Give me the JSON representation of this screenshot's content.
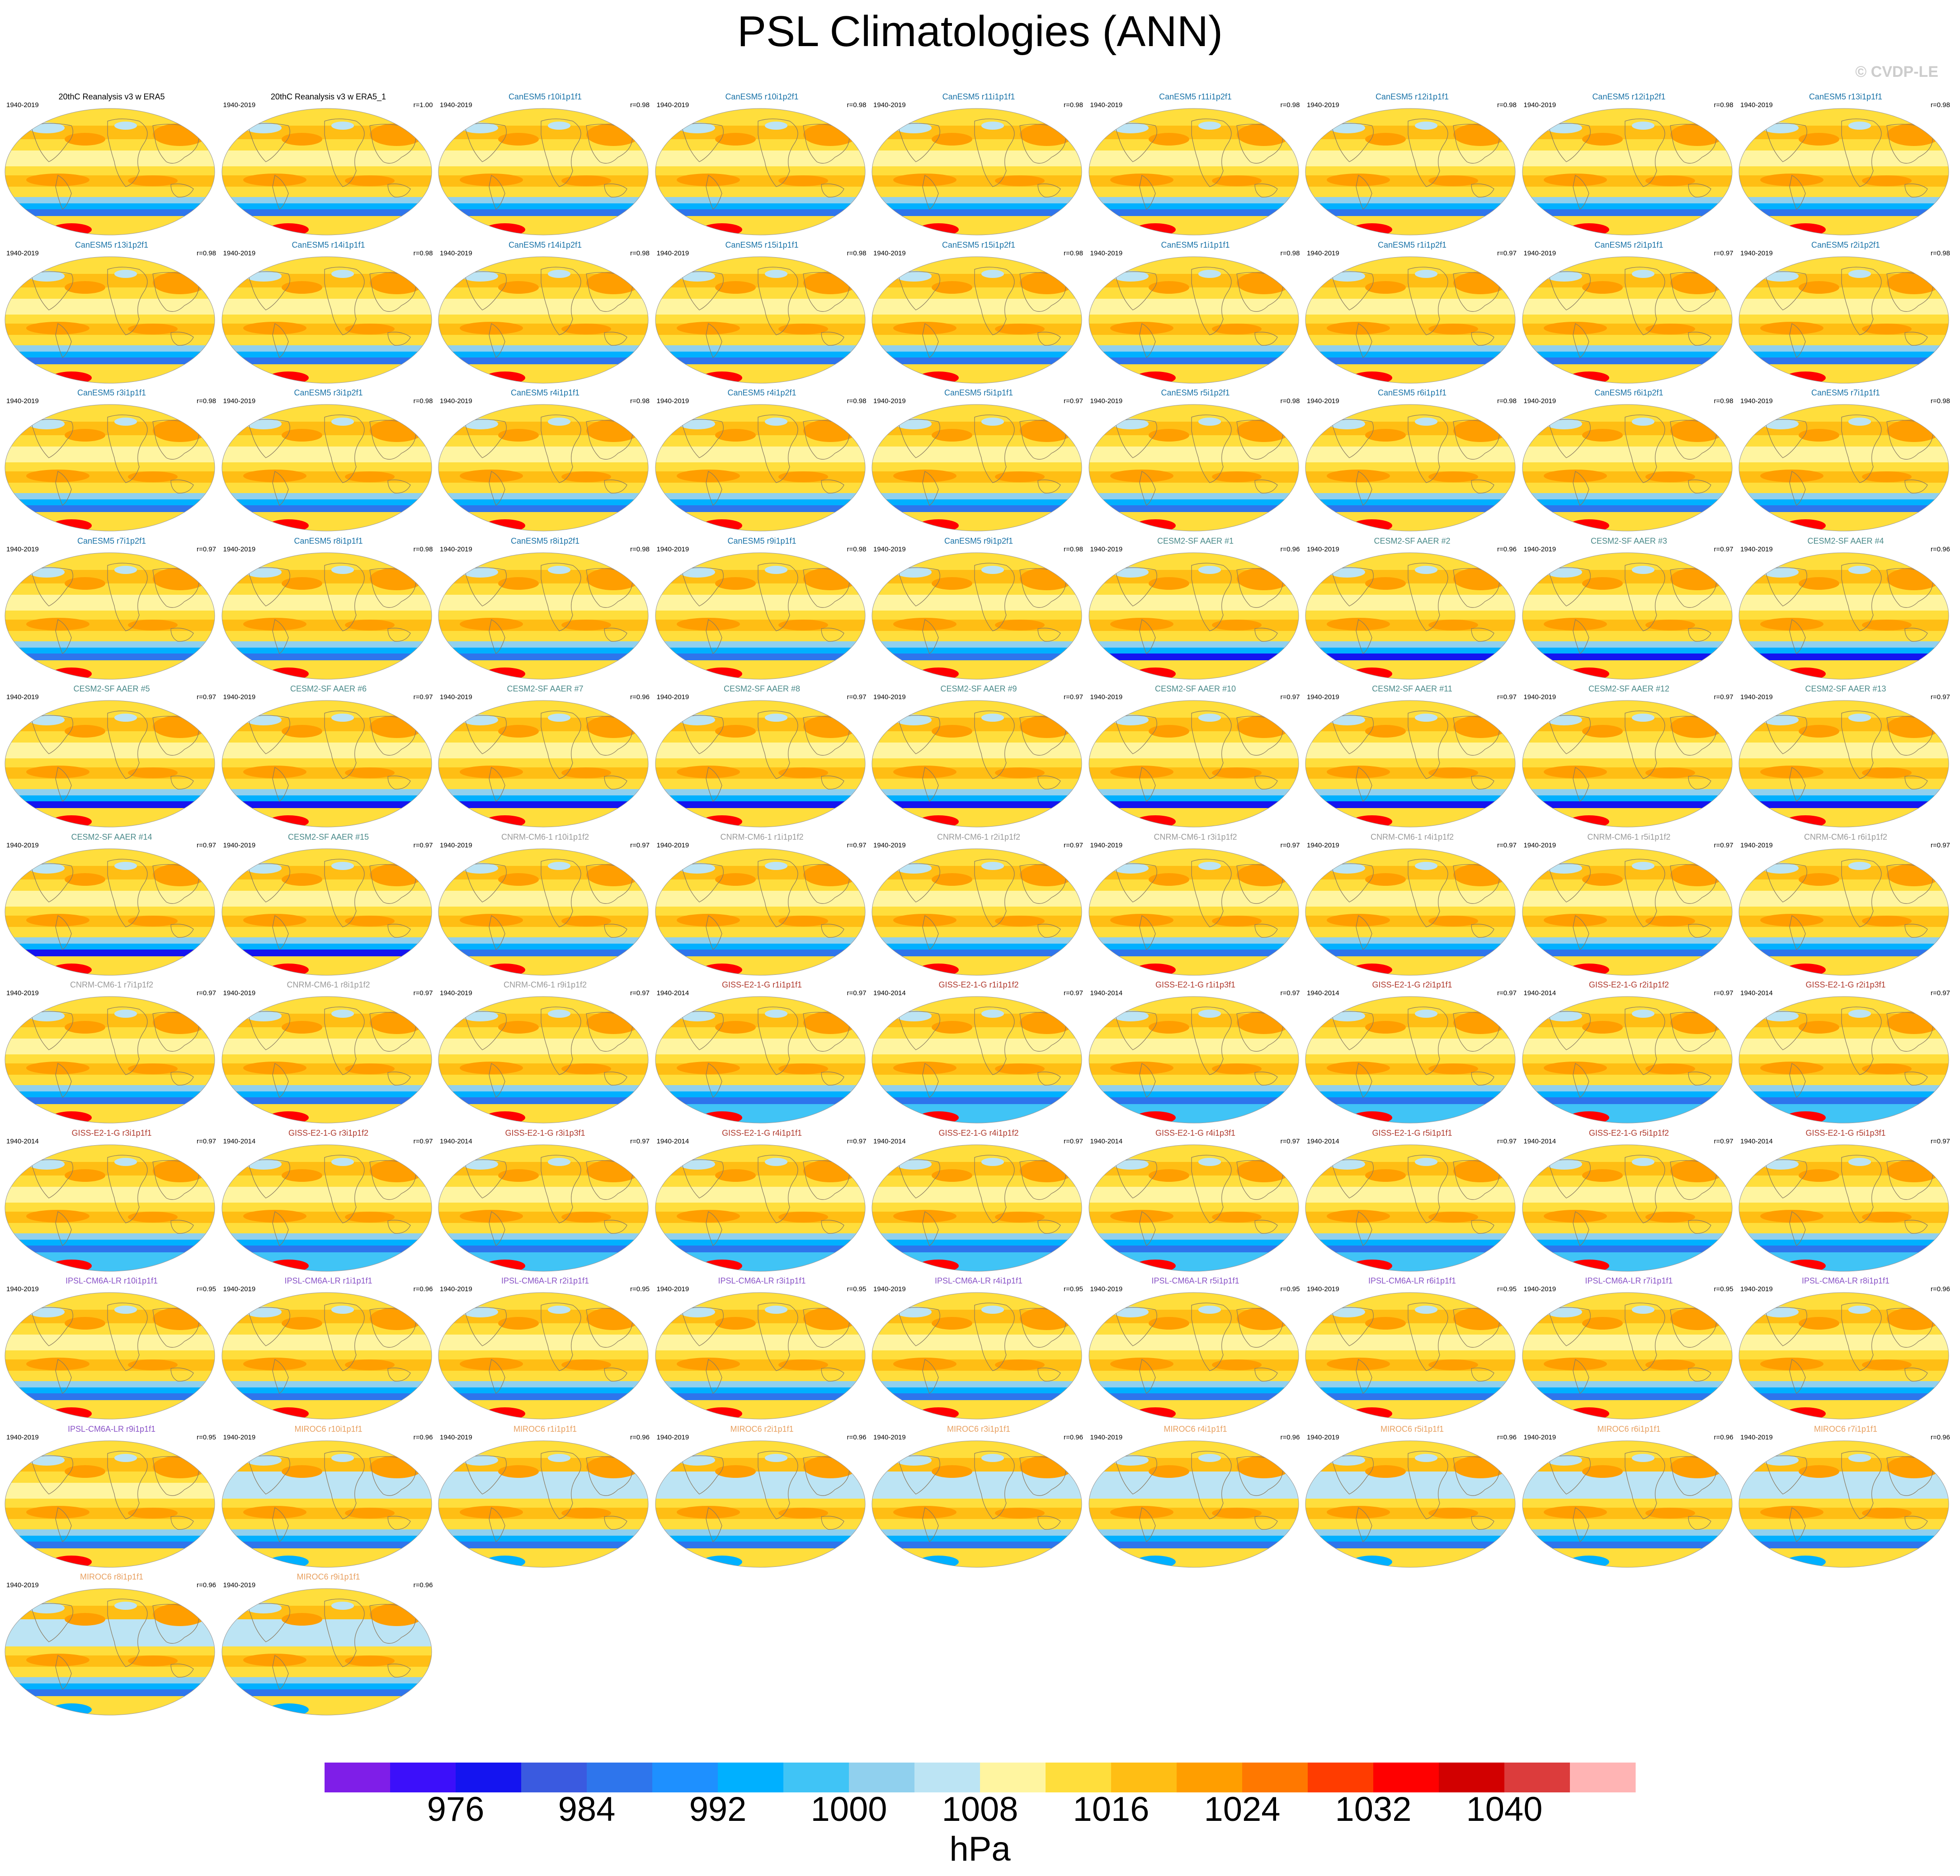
{
  "title": "PSL Climatologies (ANN)",
  "watermark": "© CVDP-LE",
  "chart_data": {
    "type": "heatmap",
    "title": "PSL Climatologies (ANN)",
    "units": "hPa",
    "colorbar": {
      "tick_labels": [
        "976",
        "984",
        "992",
        "1000",
        "1008",
        "1016",
        "1024",
        "1032",
        "1040"
      ],
      "colors": [
        "#7f1ee8",
        "#3c0ffa",
        "#1414f0",
        "#3a5ae0",
        "#2e75ec",
        "#1e90ff",
        "#00b0ff",
        "#40c4f6",
        "#90d0ee",
        "#bce4f4",
        "#fff5a0",
        "#ffde3c",
        "#ffbe14",
        "#ff9e00",
        "#ff7800",
        "#ff3c00",
        "#ff0000",
        "#d20000",
        "#dc3c3c",
        "#ffb4b4"
      ]
    },
    "group_colors": {
      "obs": "#000000",
      "CanESM5": "#1a73a8",
      "CESM2-SF": "#4a8a8a",
      "CNRM-CM6-1": "#9a9a9a",
      "GISS-E2-1-G": "#b03a2e",
      "IPSL-CM6A-LR": "#8a54c8",
      "MIROC6": "#e8a060"
    },
    "panels": [
      {
        "title": "20thC Reanalysis v3 w ERA5",
        "years": "1940-2019",
        "r": "",
        "group": "obs"
      },
      {
        "title": "20thC Reanalysis v3 w ERA5_1",
        "years": "1940-2019",
        "r": "r=1.00",
        "group": "obs"
      },
      {
        "title": "CanESM5 r10i1p1f1",
        "years": "1940-2019",
        "r": "r=0.98",
        "group": "CanESM5"
      },
      {
        "title": "CanESM5 r10i1p2f1",
        "years": "1940-2019",
        "r": "r=0.98",
        "group": "CanESM5"
      },
      {
        "title": "CanESM5 r11i1p1f1",
        "years": "1940-2019",
        "r": "r=0.98",
        "group": "CanESM5"
      },
      {
        "title": "CanESM5 r11i1p2f1",
        "years": "1940-2019",
        "r": "r=0.98",
        "group": "CanESM5"
      },
      {
        "title": "CanESM5 r12i1p1f1",
        "years": "1940-2019",
        "r": "r=0.98",
        "group": "CanESM5"
      },
      {
        "title": "CanESM5 r12i1p2f1",
        "years": "1940-2019",
        "r": "r=0.98",
        "group": "CanESM5"
      },
      {
        "title": "CanESM5 r13i1p1f1",
        "years": "1940-2019",
        "r": "r=0.98",
        "group": "CanESM5"
      },
      {
        "title": "CanESM5 r13i1p2f1",
        "years": "1940-2019",
        "r": "r=0.98",
        "group": "CanESM5"
      },
      {
        "title": "CanESM5 r14i1p1f1",
        "years": "1940-2019",
        "r": "r=0.98",
        "group": "CanESM5"
      },
      {
        "title": "CanESM5 r14i1p2f1",
        "years": "1940-2019",
        "r": "r=0.98",
        "group": "CanESM5"
      },
      {
        "title": "CanESM5 r15i1p1f1",
        "years": "1940-2019",
        "r": "r=0.98",
        "group": "CanESM5"
      },
      {
        "title": "CanESM5 r15i1p2f1",
        "years": "1940-2019",
        "r": "r=0.98",
        "group": "CanESM5"
      },
      {
        "title": "CanESM5 r1i1p1f1",
        "years": "1940-2019",
        "r": "r=0.98",
        "group": "CanESM5"
      },
      {
        "title": "CanESM5 r1i1p2f1",
        "years": "1940-2019",
        "r": "r=0.97",
        "group": "CanESM5"
      },
      {
        "title": "CanESM5 r2i1p1f1",
        "years": "1940-2019",
        "r": "r=0.97",
        "group": "CanESM5"
      },
      {
        "title": "CanESM5 r2i1p2f1",
        "years": "1940-2019",
        "r": "r=0.98",
        "group": "CanESM5"
      },
      {
        "title": "CanESM5 r3i1p1f1",
        "years": "1940-2019",
        "r": "r=0.98",
        "group": "CanESM5"
      },
      {
        "title": "CanESM5 r3i1p2f1",
        "years": "1940-2019",
        "r": "r=0.98",
        "group": "CanESM5"
      },
      {
        "title": "CanESM5 r4i1p1f1",
        "years": "1940-2019",
        "r": "r=0.98",
        "group": "CanESM5"
      },
      {
        "title": "CanESM5 r4i1p2f1",
        "years": "1940-2019",
        "r": "r=0.98",
        "group": "CanESM5"
      },
      {
        "title": "CanESM5 r5i1p1f1",
        "years": "1940-2019",
        "r": "r=0.97",
        "group": "CanESM5"
      },
      {
        "title": "CanESM5 r5i1p2f1",
        "years": "1940-2019",
        "r": "r=0.98",
        "group": "CanESM5"
      },
      {
        "title": "CanESM5 r6i1p1f1",
        "years": "1940-2019",
        "r": "r=0.98",
        "group": "CanESM5"
      },
      {
        "title": "CanESM5 r6i1p2f1",
        "years": "1940-2019",
        "r": "r=0.98",
        "group": "CanESM5"
      },
      {
        "title": "CanESM5 r7i1p1f1",
        "years": "1940-2019",
        "r": "r=0.98",
        "group": "CanESM5"
      },
      {
        "title": "CanESM5 r7i1p2f1",
        "years": "1940-2019",
        "r": "r=0.97",
        "group": "CanESM5"
      },
      {
        "title": "CanESM5 r8i1p1f1",
        "years": "1940-2019",
        "r": "r=0.98",
        "group": "CanESM5"
      },
      {
        "title": "CanESM5 r8i1p2f1",
        "years": "1940-2019",
        "r": "r=0.98",
        "group": "CanESM5"
      },
      {
        "title": "CanESM5 r9i1p1f1",
        "years": "1940-2019",
        "r": "r=0.98",
        "group": "CanESM5"
      },
      {
        "title": "CanESM5 r9i1p2f1",
        "years": "1940-2019",
        "r": "r=0.98",
        "group": "CanESM5"
      },
      {
        "title": "CESM2-SF AAER #1",
        "years": "1940-2019",
        "r": "r=0.96",
        "group": "CESM2-SF"
      },
      {
        "title": "CESM2-SF AAER #2",
        "years": "1940-2019",
        "r": "r=0.96",
        "group": "CESM2-SF"
      },
      {
        "title": "CESM2-SF AAER #3",
        "years": "1940-2019",
        "r": "r=0.97",
        "group": "CESM2-SF"
      },
      {
        "title": "CESM2-SF AAER #4",
        "years": "1940-2019",
        "r": "r=0.96",
        "group": "CESM2-SF"
      },
      {
        "title": "CESM2-SF AAER #5",
        "years": "1940-2019",
        "r": "r=0.97",
        "group": "CESM2-SF"
      },
      {
        "title": "CESM2-SF AAER #6",
        "years": "1940-2019",
        "r": "r=0.97",
        "group": "CESM2-SF"
      },
      {
        "title": "CESM2-SF AAER #7",
        "years": "1940-2019",
        "r": "r=0.96",
        "group": "CESM2-SF"
      },
      {
        "title": "CESM2-SF AAER #8",
        "years": "1940-2019",
        "r": "r=0.97",
        "group": "CESM2-SF"
      },
      {
        "title": "CESM2-SF AAER #9",
        "years": "1940-2019",
        "r": "r=0.97",
        "group": "CESM2-SF"
      },
      {
        "title": "CESM2-SF AAER #10",
        "years": "1940-2019",
        "r": "r=0.97",
        "group": "CESM2-SF"
      },
      {
        "title": "CESM2-SF AAER #11",
        "years": "1940-2019",
        "r": "r=0.97",
        "group": "CESM2-SF"
      },
      {
        "title": "CESM2-SF AAER #12",
        "years": "1940-2019",
        "r": "r=0.97",
        "group": "CESM2-SF"
      },
      {
        "title": "CESM2-SF AAER #13",
        "years": "1940-2019",
        "r": "r=0.97",
        "group": "CESM2-SF"
      },
      {
        "title": "CESM2-SF AAER #14",
        "years": "1940-2019",
        "r": "r=0.97",
        "group": "CESM2-SF"
      },
      {
        "title": "CESM2-SF AAER #15",
        "years": "1940-2019",
        "r": "r=0.97",
        "group": "CESM2-SF"
      },
      {
        "title": "CNRM-CM6-1 r10i1p1f2",
        "years": "1940-2019",
        "r": "r=0.97",
        "group": "CNRM-CM6-1"
      },
      {
        "title": "CNRM-CM6-1 r1i1p1f2",
        "years": "1940-2019",
        "r": "r=0.97",
        "group": "CNRM-CM6-1"
      },
      {
        "title": "CNRM-CM6-1 r2i1p1f2",
        "years": "1940-2019",
        "r": "r=0.97",
        "group": "CNRM-CM6-1"
      },
      {
        "title": "CNRM-CM6-1 r3i1p1f2",
        "years": "1940-2019",
        "r": "r=0.97",
        "group": "CNRM-CM6-1"
      },
      {
        "title": "CNRM-CM6-1 r4i1p1f2",
        "years": "1940-2019",
        "r": "r=0.97",
        "group": "CNRM-CM6-1"
      },
      {
        "title": "CNRM-CM6-1 r5i1p1f2",
        "years": "1940-2019",
        "r": "r=0.97",
        "group": "CNRM-CM6-1"
      },
      {
        "title": "CNRM-CM6-1 r6i1p1f2",
        "years": "1940-2019",
        "r": "r=0.97",
        "group": "CNRM-CM6-1"
      },
      {
        "title": "CNRM-CM6-1 r7i1p1f2",
        "years": "1940-2019",
        "r": "r=0.97",
        "group": "CNRM-CM6-1"
      },
      {
        "title": "CNRM-CM6-1 r8i1p1f2",
        "years": "1940-2019",
        "r": "r=0.97",
        "group": "CNRM-CM6-1"
      },
      {
        "title": "CNRM-CM6-1 r9i1p1f2",
        "years": "1940-2019",
        "r": "r=0.97",
        "group": "CNRM-CM6-1"
      },
      {
        "title": "GISS-E2-1-G r1i1p1f1",
        "years": "1940-2014",
        "r": "r=0.97",
        "group": "GISS-E2-1-G"
      },
      {
        "title": "GISS-E2-1-G r1i1p1f2",
        "years": "1940-2014",
        "r": "r=0.97",
        "group": "GISS-E2-1-G"
      },
      {
        "title": "GISS-E2-1-G r1i1p3f1",
        "years": "1940-2014",
        "r": "r=0.97",
        "group": "GISS-E2-1-G"
      },
      {
        "title": "GISS-E2-1-G r2i1p1f1",
        "years": "1940-2014",
        "r": "r=0.97",
        "group": "GISS-E2-1-G"
      },
      {
        "title": "GISS-E2-1-G r2i1p1f2",
        "years": "1940-2014",
        "r": "r=0.97",
        "group": "GISS-E2-1-G"
      },
      {
        "title": "GISS-E2-1-G r2i1p3f1",
        "years": "1940-2014",
        "r": "r=0.97",
        "group": "GISS-E2-1-G"
      },
      {
        "title": "GISS-E2-1-G r3i1p1f1",
        "years": "1940-2014",
        "r": "r=0.97",
        "group": "GISS-E2-1-G"
      },
      {
        "title": "GISS-E2-1-G r3i1p1f2",
        "years": "1940-2014",
        "r": "r=0.97",
        "group": "GISS-E2-1-G"
      },
      {
        "title": "GISS-E2-1-G r3i1p3f1",
        "years": "1940-2014",
        "r": "r=0.97",
        "group": "GISS-E2-1-G"
      },
      {
        "title": "GISS-E2-1-G r4i1p1f1",
        "years": "1940-2014",
        "r": "r=0.97",
        "group": "GISS-E2-1-G"
      },
      {
        "title": "GISS-E2-1-G r4i1p1f2",
        "years": "1940-2014",
        "r": "r=0.97",
        "group": "GISS-E2-1-G"
      },
      {
        "title": "GISS-E2-1-G r4i1p3f1",
        "years": "1940-2014",
        "r": "r=0.97",
        "group": "GISS-E2-1-G"
      },
      {
        "title": "GISS-E2-1-G r5i1p1f1",
        "years": "1940-2014",
        "r": "r=0.97",
        "group": "GISS-E2-1-G"
      },
      {
        "title": "GISS-E2-1-G r5i1p1f2",
        "years": "1940-2014",
        "r": "r=0.97",
        "group": "GISS-E2-1-G"
      },
      {
        "title": "GISS-E2-1-G r5i1p3f1",
        "years": "1940-2014",
        "r": "r=0.97",
        "group": "GISS-E2-1-G"
      },
      {
        "title": "IPSL-CM6A-LR r10i1p1f1",
        "years": "1940-2019",
        "r": "r=0.95",
        "group": "IPSL-CM6A-LR"
      },
      {
        "title": "IPSL-CM6A-LR r1i1p1f1",
        "years": "1940-2019",
        "r": "r=0.96",
        "group": "IPSL-CM6A-LR"
      },
      {
        "title": "IPSL-CM6A-LR r2i1p1f1",
        "years": "1940-2019",
        "r": "r=0.95",
        "group": "IPSL-CM6A-LR"
      },
      {
        "title": "IPSL-CM6A-LR r3i1p1f1",
        "years": "1940-2019",
        "r": "r=0.95",
        "group": "IPSL-CM6A-LR"
      },
      {
        "title": "IPSL-CM6A-LR r4i1p1f1",
        "years": "1940-2019",
        "r": "r=0.95",
        "group": "IPSL-CM6A-LR"
      },
      {
        "title": "IPSL-CM6A-LR r5i1p1f1",
        "years": "1940-2019",
        "r": "r=0.95",
        "group": "IPSL-CM6A-LR"
      },
      {
        "title": "IPSL-CM6A-LR r6i1p1f1",
        "years": "1940-2019",
        "r": "r=0.95",
        "group": "IPSL-CM6A-LR"
      },
      {
        "title": "IPSL-CM6A-LR r7i1p1f1",
        "years": "1940-2019",
        "r": "r=0.95",
        "group": "IPSL-CM6A-LR"
      },
      {
        "title": "IPSL-CM6A-LR r8i1p1f1",
        "years": "1940-2019",
        "r": "r=0.96",
        "group": "IPSL-CM6A-LR"
      },
      {
        "title": "IPSL-CM6A-LR r9i1p1f1",
        "years": "1940-2019",
        "r": "r=0.95",
        "group": "IPSL-CM6A-LR"
      },
      {
        "title": "MIROC6 r10i1p1f1",
        "years": "1940-2019",
        "r": "r=0.96",
        "group": "MIROC6"
      },
      {
        "title": "MIROC6 r1i1p1f1",
        "years": "1940-2019",
        "r": "r=0.96",
        "group": "MIROC6"
      },
      {
        "title": "MIROC6 r2i1p1f1",
        "years": "1940-2019",
        "r": "r=0.96",
        "group": "MIROC6"
      },
      {
        "title": "MIROC6 r3i1p1f1",
        "years": "1940-2019",
        "r": "r=0.96",
        "group": "MIROC6"
      },
      {
        "title": "MIROC6 r4i1p1f1",
        "years": "1940-2019",
        "r": "r=0.96",
        "group": "MIROC6"
      },
      {
        "title": "MIROC6 r5i1p1f1",
        "years": "1940-2019",
        "r": "r=0.96",
        "group": "MIROC6"
      },
      {
        "title": "MIROC6 r6i1p1f1",
        "years": "1940-2019",
        "r": "r=0.96",
        "group": "MIROC6"
      },
      {
        "title": "MIROC6 r7i1p1f1",
        "years": "1940-2019",
        "r": "r=0.96",
        "group": "MIROC6"
      },
      {
        "title": "MIROC6 r8i1p1f1",
        "years": "1940-2019",
        "r": "r=0.96",
        "group": "MIROC6"
      },
      {
        "title": "MIROC6 r9i1p1f1",
        "years": "1940-2019",
        "r": "r=0.96",
        "group": "MIROC6"
      }
    ]
  }
}
